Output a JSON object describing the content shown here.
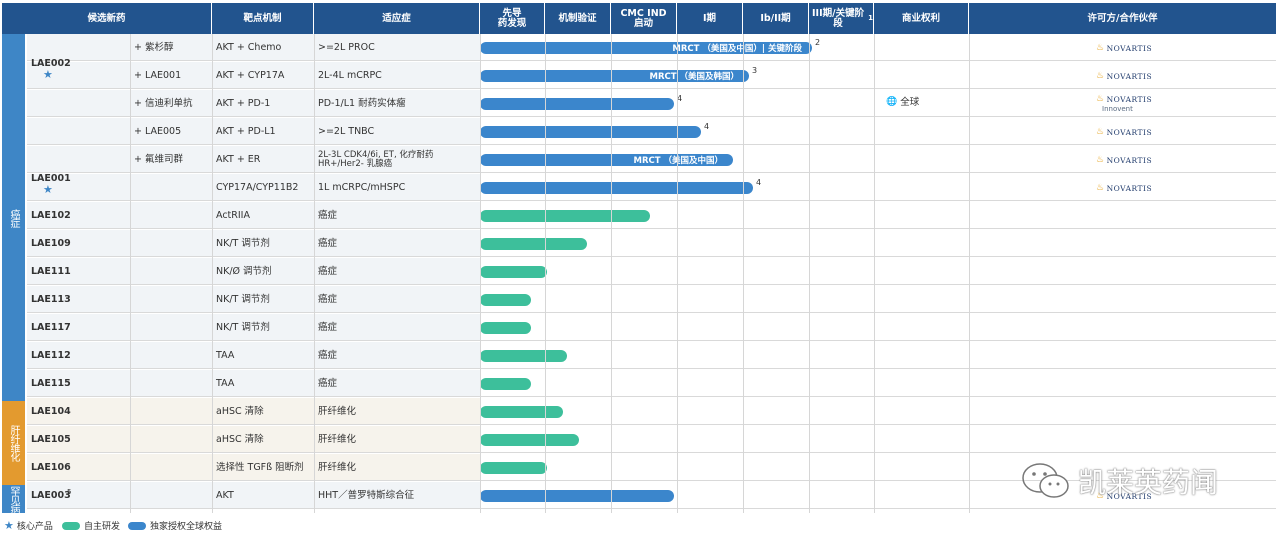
{
  "headers": {
    "candidate": "候选新药",
    "target": "靶点机制",
    "indication": "适应症",
    "discovery": "先导\n药发现",
    "mechanism_validation": "机制验证",
    "cmc_ind": "CMC IND\n启动",
    "phase1": "I期",
    "phase1b2": "Ib/II期",
    "phase3": "III期/关键阶段",
    "phase3_sup": "1",
    "commercial": "商业权利",
    "partner": "许可方/合作伙伴"
  },
  "categories": {
    "cancer": "癌症",
    "fibrosis": "肝纤维化",
    "rare": "罕见病"
  },
  "groups": {
    "lae002": "LAE002",
    "lae001": "LAE001"
  },
  "rows": [
    {
      "drug": "",
      "combo": "+ 紫杉醇",
      "target": "AKT + Chemo",
      "indication": ">=2L PROC",
      "bar_label": "MRCT （美国及中国）| 关键阶段",
      "sup": "2",
      "progress": 0.84,
      "color": "blue",
      "partner": "NOVARTIS"
    },
    {
      "drug": "",
      "combo": "+ LAE001",
      "target": "AKT + CYP17A",
      "indication": "2L-4L mCRPC",
      "bar_label": "MRCT （美国及韩国）",
      "sup": "3",
      "progress": 0.68,
      "color": "blue",
      "partner": "NOVARTIS"
    },
    {
      "drug": "",
      "combo": "+ 信迪利单抗",
      "target": "AKT + PD-1",
      "indication": "PD-1/L1 耐药实体瘤",
      "bar_label": "",
      "sup": "4",
      "progress": 0.49,
      "color": "blue",
      "partner": "NOVARTIS",
      "partner2": "Innovent"
    },
    {
      "drug": "",
      "combo": "+ LAE005",
      "target": "AKT + PD-L1",
      "indication": ">=2L TNBC",
      "bar_label": "",
      "sup": "4",
      "progress": 0.56,
      "color": "blue",
      "partner": "NOVARTIS"
    },
    {
      "drug": "",
      "combo": "+ 氟维司群",
      "target": "AKT + ER",
      "indication": "2L-3L CDK4/6i, ET, 化疗耐药 HR+/Her2- 乳腺癌",
      "bar_label": "MRCT （美国及中国）",
      "sup": "",
      "progress": 0.64,
      "color": "blue",
      "partner": "NOVARTIS"
    },
    {
      "drug": "",
      "combo": "",
      "target": "CYP17A/CYP11B2",
      "indication": "1L mCRPC/mHSPC",
      "bar_label": "",
      "sup": "4",
      "progress": 0.69,
      "color": "blue",
      "partner": "NOVARTIS"
    },
    {
      "drug": "LAE102",
      "combo": "",
      "target": "ActRIIA",
      "indication": "癌症",
      "bar_label": "",
      "sup": "",
      "progress": 0.43,
      "color": "green",
      "partner": ""
    },
    {
      "drug": "LAE109",
      "combo": "",
      "target": "NK/T 调节剂",
      "indication": "癌症",
      "bar_label": "",
      "sup": "",
      "progress": 0.27,
      "color": "green",
      "partner": ""
    },
    {
      "drug": "LAE111",
      "combo": "",
      "target": "NK/Ø 调节剂",
      "indication": "癌症",
      "bar_label": "",
      "sup": "",
      "progress": 0.17,
      "color": "green",
      "partner": ""
    },
    {
      "drug": "LAE113",
      "combo": "",
      "target": "NK/T 调节剂",
      "indication": "癌症",
      "bar_label": "",
      "sup": "",
      "progress": 0.13,
      "color": "green",
      "partner": ""
    },
    {
      "drug": "LAE117",
      "combo": "",
      "target": "NK/T 调节剂",
      "indication": "癌症",
      "bar_label": "",
      "sup": "",
      "progress": 0.13,
      "color": "green",
      "partner": ""
    },
    {
      "drug": "LAE112",
      "combo": "",
      "target": "TAA",
      "indication": "癌症",
      "bar_label": "",
      "sup": "",
      "progress": 0.22,
      "color": "green",
      "partner": ""
    },
    {
      "drug": "LAE115",
      "combo": "",
      "target": "TAA",
      "indication": "癌症",
      "bar_label": "",
      "sup": "",
      "progress": 0.13,
      "color": "green",
      "partner": ""
    },
    {
      "drug": "LAE104",
      "combo": "",
      "target": "aHSC 清除",
      "indication": "肝纤维化",
      "bar_label": "",
      "sup": "",
      "progress": 0.21,
      "color": "green",
      "partner": ""
    },
    {
      "drug": "LAE105",
      "combo": "",
      "target": "aHSC 清除",
      "indication": "肝纤维化",
      "bar_label": "",
      "sup": "",
      "progress": 0.25,
      "color": "green",
      "partner": ""
    },
    {
      "drug": "LAE106",
      "combo": "",
      "target": "选择性 TGFß 阻断剂",
      "indication": "肝纤维化",
      "bar_label": "",
      "sup": "",
      "progress": 0.17,
      "color": "green",
      "partner": ""
    },
    {
      "drug": "LAE003",
      "drug_sup": "5",
      "combo": "",
      "target": "AKT",
      "indication": "HHT／普罗特斯综合征",
      "bar_label": "",
      "sup": "",
      "progress": 0.49,
      "color": "blue",
      "partner": "NOVARTIS"
    }
  ],
  "commercial_rights": "全球",
  "watermark": "凯莱英药闻",
  "legend": {
    "core": "核心产品",
    "self": "自主研发",
    "licensed": "独家授权全球权益"
  },
  "colors": {
    "header": "#22548e",
    "cancer": "#3e86c6",
    "fibrosis": "#e39a2f",
    "blue_bar": "#3b86cc",
    "green_bar": "#3dbf9b"
  }
}
